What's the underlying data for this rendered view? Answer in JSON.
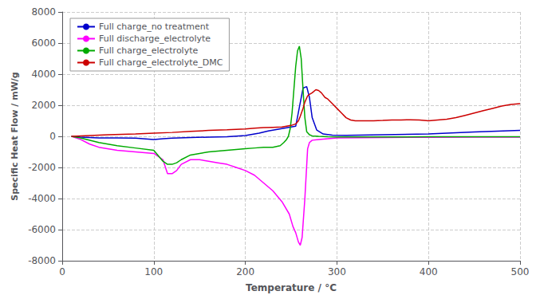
{
  "chart_data": {
    "type": "line",
    "xlabel": "Temperature / °C",
    "ylabel": "Specific Heat Flow / mW/g",
    "xlim": [
      0,
      500
    ],
    "ylim": [
      -8000,
      8000
    ],
    "xticks": [
      0,
      100,
      200,
      300,
      400,
      500
    ],
    "yticks": [
      -8000,
      -6000,
      -4000,
      -2000,
      0,
      2000,
      4000,
      6000,
      8000
    ],
    "grid": true,
    "legend": "upper left",
    "series": [
      {
        "name": "Full charge_no treatment",
        "color": "#0000cc",
        "x": [
          10,
          20,
          40,
          60,
          80,
          100,
          110,
          120,
          140,
          160,
          180,
          200,
          215,
          225,
          235,
          245,
          255,
          263,
          267,
          270,
          273,
          278,
          285,
          295,
          310,
          350,
          400,
          450,
          500
        ],
        "values": [
          0,
          -50,
          -100,
          -100,
          -120,
          -200,
          -150,
          -120,
          -80,
          -50,
          -30,
          50,
          200,
          350,
          450,
          550,
          650,
          3100,
          3200,
          2500,
          1200,
          400,
          150,
          80,
          60,
          100,
          150,
          280,
          380
        ]
      },
      {
        "name": "Full discharge_electrolyte",
        "color": "#ff00ff",
        "x": [
          10,
          20,
          30,
          40,
          60,
          80,
          100,
          110,
          115,
          120,
          125,
          130,
          140,
          150,
          160,
          170,
          180,
          190,
          200,
          210,
          220,
          230,
          240,
          248,
          252,
          255,
          258,
          260,
          262,
          265,
          268,
          270,
          273,
          280,
          290,
          300,
          350,
          400,
          450,
          500
        ],
        "values": [
          0,
          -200,
          -500,
          -700,
          -900,
          -1000,
          -1100,
          -1500,
          -2400,
          -2400,
          -2200,
          -1800,
          -1500,
          -1500,
          -1600,
          -1700,
          -1800,
          -2000,
          -2200,
          -2500,
          -3000,
          -3500,
          -4200,
          -5000,
          -5800,
          -6200,
          -6800,
          -7000,
          -6500,
          -4000,
          -800,
          -400,
          -250,
          -200,
          -150,
          -100,
          -80,
          -60,
          -50,
          -50
        ]
      },
      {
        "name": "Full charge_electrolyte",
        "color": "#00aa00",
        "x": [
          10,
          20,
          40,
          60,
          80,
          100,
          110,
          115,
          120,
          125,
          130,
          140,
          150,
          160,
          170,
          180,
          190,
          200,
          210,
          220,
          230,
          238,
          242,
          245,
          247,
          249,
          251,
          253,
          255,
          257,
          259,
          261,
          263,
          265,
          267,
          270,
          273,
          280,
          290,
          300,
          350,
          400,
          450,
          500
        ],
        "values": [
          0,
          -100,
          -400,
          -600,
          -750,
          -900,
          -1600,
          -1800,
          -1800,
          -1700,
          -1500,
          -1200,
          -1100,
          -1000,
          -950,
          -900,
          -850,
          -800,
          -750,
          -700,
          -700,
          -600,
          -400,
          -200,
          0,
          500,
          1500,
          3000,
          4500,
          5500,
          5800,
          5000,
          3000,
          1200,
          300,
          100,
          30,
          0,
          -30,
          -40,
          -40,
          -30,
          -20,
          -20
        ]
      },
      {
        "name": "Full charge_electrolyte_DMC",
        "color": "#cc0000",
        "x": [
          10,
          30,
          50,
          80,
          100,
          120,
          140,
          160,
          180,
          200,
          210,
          220,
          230,
          240,
          245,
          250,
          255,
          258,
          260,
          263,
          265,
          268,
          270,
          273,
          277,
          280,
          283,
          287,
          290,
          295,
          300,
          305,
          310,
          315,
          320,
          330,
          340,
          350,
          360,
          370,
          380,
          390,
          400,
          410,
          420,
          430,
          440,
          450,
          460,
          470,
          480,
          490,
          500
        ],
        "values": [
          0,
          50,
          100,
          150,
          200,
          250,
          320,
          380,
          420,
          480,
          520,
          560,
          580,
          600,
          650,
          700,
          800,
          1000,
          1300,
          1800,
          2200,
          2600,
          2700,
          2800,
          3000,
          2950,
          2800,
          2500,
          2400,
          2100,
          1800,
          1500,
          1200,
          1050,
          1000,
          1000,
          1000,
          1020,
          1050,
          1050,
          1070,
          1050,
          1000,
          1050,
          1100,
          1200,
          1350,
          1500,
          1650,
          1800,
          1950,
          2050,
          2100
        ]
      }
    ]
  }
}
